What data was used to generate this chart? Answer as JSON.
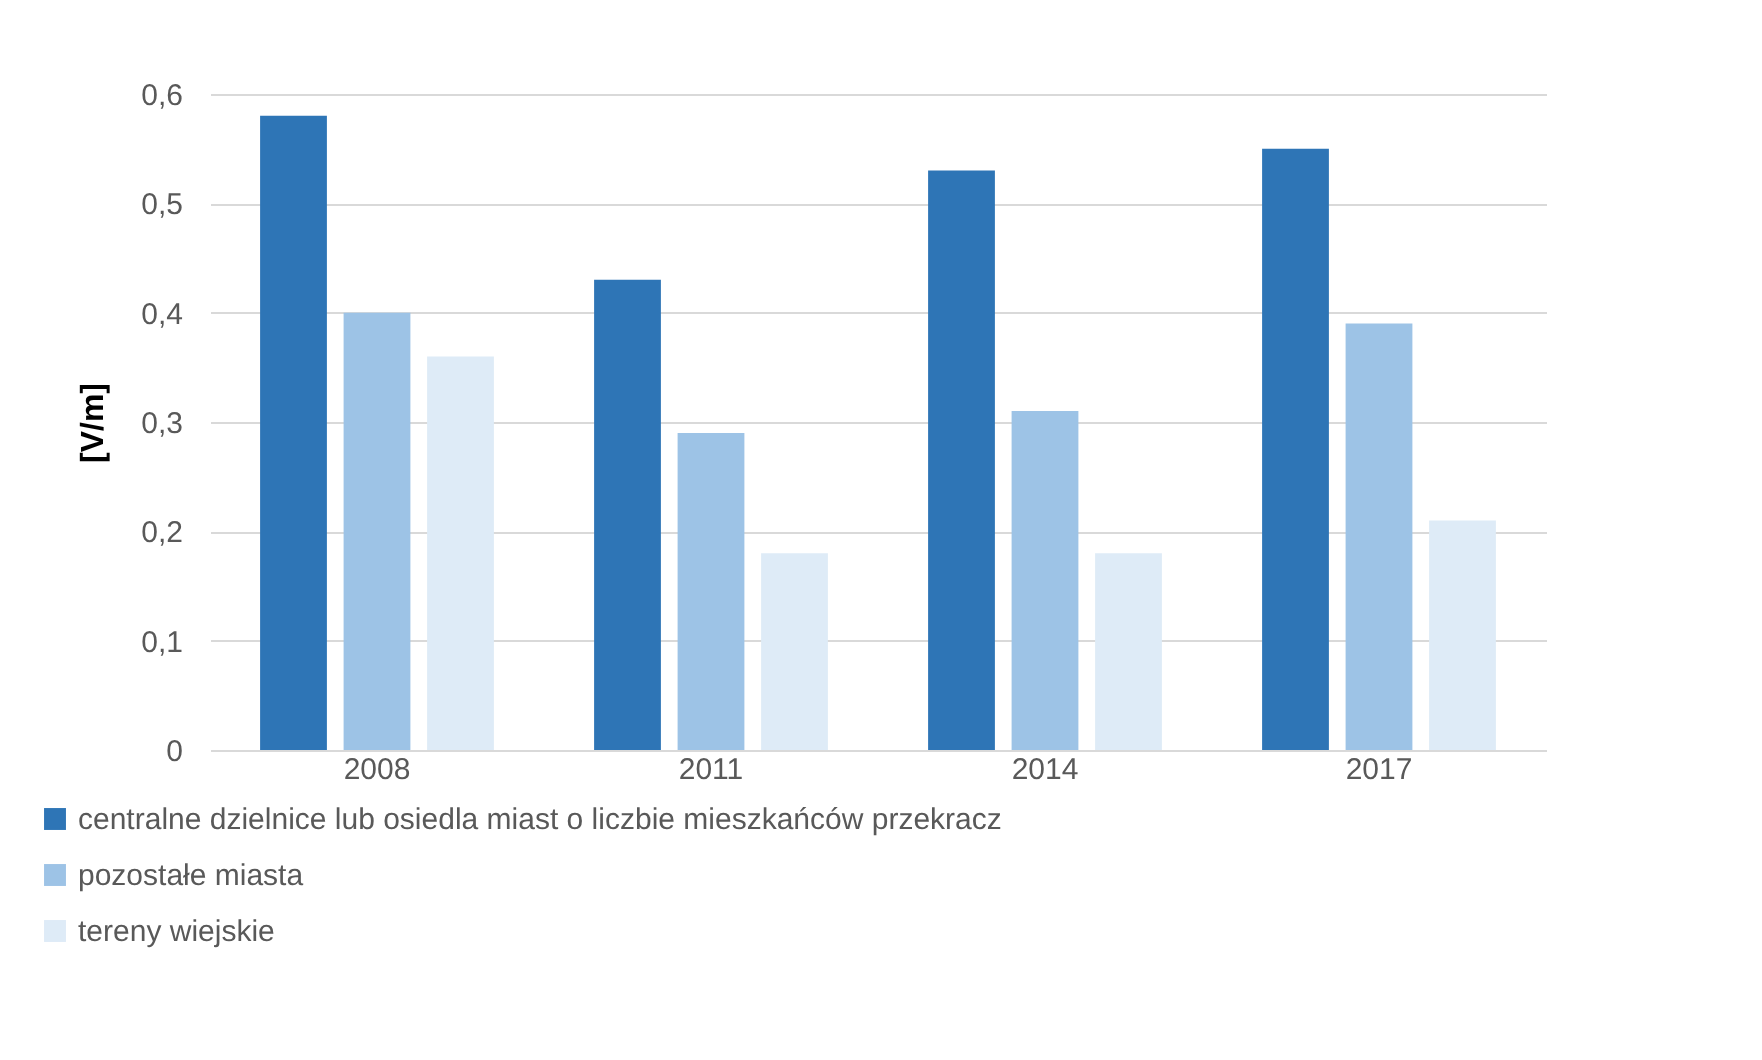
{
  "chart_data": {
    "type": "bar",
    "ylabel": "[V/m]",
    "categories": [
      "2008",
      "2011",
      "2014",
      "2017"
    ],
    "series": [
      {
        "name": "centralne dzielnice lub osiedla miast o liczbie mieszkańców przekracz",
        "color": "#2e75b6",
        "values": [
          0.58,
          0.43,
          0.53,
          0.55
        ]
      },
      {
        "name": "pozostałe miasta",
        "color": "#9dc3e6",
        "values": [
          0.4,
          0.29,
          0.31,
          0.39
        ]
      },
      {
        "name": "tereny wiejskie",
        "color": "#deebf7",
        "values": [
          0.36,
          0.18,
          0.18,
          0.21
        ]
      }
    ],
    "ylim": [
      0,
      0.6
    ],
    "yticks": [
      {
        "value": 0,
        "label": "0"
      },
      {
        "value": 0.1,
        "label": "0,1"
      },
      {
        "value": 0.2,
        "label": "0,2"
      },
      {
        "value": 0.3,
        "label": "0,3"
      },
      {
        "value": 0.4,
        "label": "0,4"
      },
      {
        "value": 0.5,
        "label": "0,5"
      },
      {
        "value": 0.6,
        "label": "0,6"
      }
    ],
    "grid": "y",
    "legend": "bottom"
  }
}
